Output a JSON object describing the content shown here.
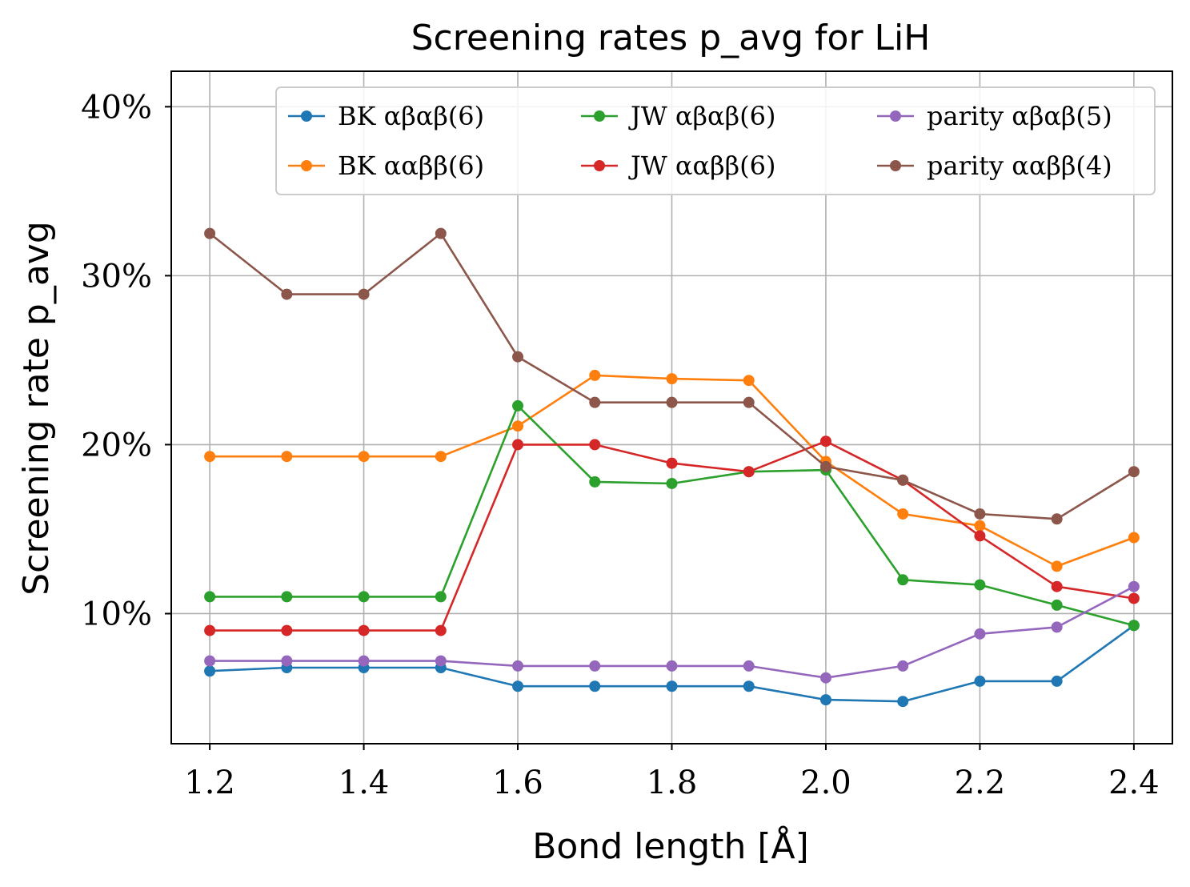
{
  "chart_data": {
    "type": "line",
    "title": "Screening rates p_avg for LiH",
    "xlabel": "Bond length [Å]",
    "ylabel": "Screening rate p_avg",
    "x": [
      1.2,
      1.3,
      1.4,
      1.5,
      1.6,
      1.7,
      1.8,
      1.9,
      2.0,
      2.1,
      2.2,
      2.3,
      2.4
    ],
    "xlim": [
      1.15,
      2.45
    ],
    "ylim": [
      2.3,
      42.1
    ],
    "xticks": [
      1.2,
      1.4,
      1.6,
      1.8,
      2.0,
      2.2,
      2.4
    ],
    "xtick_labels": [
      "1.2",
      "1.4",
      "1.6",
      "1.8",
      "2.0",
      "2.2",
      "2.4"
    ],
    "yticks": [
      10,
      20,
      30,
      40
    ],
    "ytick_labels": [
      "10%",
      "20%",
      "30%",
      "40%"
    ],
    "grid": true,
    "legend_position": "top-right",
    "legend_columns": 3,
    "series": [
      {
        "name": "BK αβαβ(6)",
        "color": "#1f77b4",
        "values": [
          6.6,
          6.8,
          6.8,
          6.8,
          5.7,
          5.7,
          5.7,
          5.7,
          4.9,
          4.8,
          6.0,
          6.0,
          9.3
        ]
      },
      {
        "name": "BK ααββ(6)",
        "color": "#ff7f0e",
        "values": [
          19.3,
          19.3,
          19.3,
          19.3,
          21.1,
          24.1,
          23.9,
          23.8,
          19.0,
          15.9,
          15.2,
          12.8,
          14.5
        ]
      },
      {
        "name": "JW αβαβ(6)",
        "color": "#2ca02c",
        "values": [
          11.0,
          11.0,
          11.0,
          11.0,
          22.3,
          17.8,
          17.7,
          18.4,
          18.5,
          12.0,
          11.7,
          10.5,
          9.3
        ]
      },
      {
        "name": "JW ααββ(6)",
        "color": "#d62728",
        "values": [
          9.0,
          9.0,
          9.0,
          9.0,
          20.0,
          20.0,
          18.9,
          18.4,
          20.2,
          17.9,
          14.6,
          11.6,
          10.9
        ]
      },
      {
        "name": "parity αβαβ(5)",
        "color": "#9467bd",
        "values": [
          7.2,
          7.2,
          7.2,
          7.2,
          6.9,
          6.9,
          6.9,
          6.9,
          6.2,
          6.9,
          8.8,
          9.2,
          11.6
        ]
      },
      {
        "name": "parity ααββ(4)",
        "color": "#8c564b",
        "values": [
          32.5,
          28.9,
          28.9,
          32.5,
          25.2,
          22.5,
          22.5,
          22.5,
          18.7,
          17.9,
          15.9,
          15.6,
          18.4
        ]
      }
    ]
  }
}
